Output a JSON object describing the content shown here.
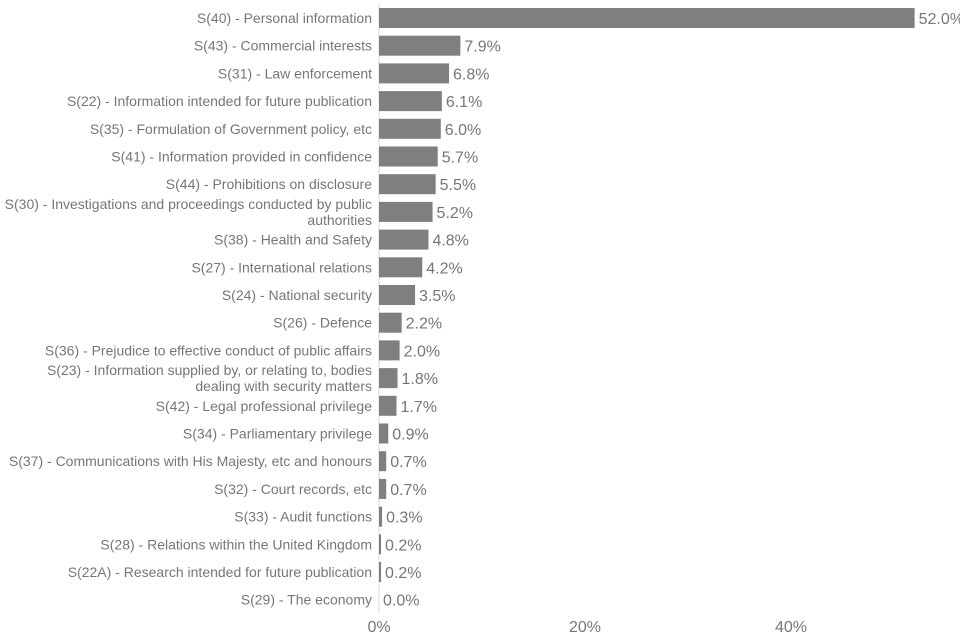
{
  "chart_data": {
    "type": "bar",
    "orientation": "horizontal",
    "categories": [
      "S(40) - Personal information",
      "S(43) - Commercial interests",
      "S(31) - Law enforcement",
      "S(22) - Information intended for future publication",
      "S(35) - Formulation of Government policy, etc",
      "S(41) - Information provided in confidence",
      "S(44) - Prohibitions on disclosure",
      "S(30) - Investigations and proceedings conducted by public authorities",
      "S(38) - Health and Safety",
      "S(27) - International relations",
      "S(24) - National security",
      "S(26) - Defence",
      "S(36) - Prejudice to effective conduct of public affairs",
      "S(23) - Information supplied by, or relating to, bodies dealing with security matters",
      "S(42) - Legal professional privilege",
      "S(34) - Parliamentary privilege",
      "S(37) - Communications with His Majesty, etc and honours",
      "S(32) - Court records, etc",
      "S(33) - Audit functions",
      "S(28) - Relations within the United Kingdom",
      "S(22A) - Research intended for future publication",
      "S(29) - The economy"
    ],
    "category_lines": [
      [
        "S(40) - Personal information"
      ],
      [
        "S(43) - Commercial interests"
      ],
      [
        "S(31) - Law enforcement"
      ],
      [
        "S(22) - Information intended for future publication"
      ],
      [
        "S(35) - Formulation of Government policy, etc"
      ],
      [
        "S(41) - Information provided in confidence"
      ],
      [
        "S(44) - Prohibitions on disclosure"
      ],
      [
        "S(30) - Investigations and proceedings conducted by public",
        "authorities"
      ],
      [
        "S(38) - Health and Safety"
      ],
      [
        "S(27) - International relations"
      ],
      [
        "S(24) - National security"
      ],
      [
        "S(26) - Defence"
      ],
      [
        "S(36) - Prejudice to effective conduct of public affairs"
      ],
      [
        "S(23) - Information supplied by, or relating to, bodies",
        "dealing with security matters"
      ],
      [
        "S(42) - Legal professional privilege"
      ],
      [
        "S(34) - Parliamentary privilege"
      ],
      [
        "S(37) - Communications with His Majesty, etc and honours"
      ],
      [
        "S(32) - Court records, etc"
      ],
      [
        "S(33) - Audit functions"
      ],
      [
        "S(28) - Relations within the United Kingdom"
      ],
      [
        "S(22A) - Research intended for future publication"
      ],
      [
        "S(29) - The economy"
      ]
    ],
    "values": [
      52.0,
      7.9,
      6.8,
      6.1,
      6.0,
      5.7,
      5.5,
      5.2,
      4.8,
      4.2,
      3.5,
      2.2,
      2.0,
      1.8,
      1.7,
      0.9,
      0.7,
      0.7,
      0.3,
      0.2,
      0.2,
      0.0
    ],
    "value_labels": [
      "52.0%",
      "7.9%",
      "6.8%",
      "6.1%",
      "6.0%",
      "5.7%",
      "5.5%",
      "5.2%",
      "4.8%",
      "4.2%",
      "3.5%",
      "2.2%",
      "2.0%",
      "1.8%",
      "1.7%",
      "0.9%",
      "0.7%",
      "0.7%",
      "0.3%",
      "0.2%",
      "0.2%",
      "0.0%"
    ],
    "x_ticks": [
      0,
      20,
      40
    ],
    "x_tick_labels": [
      "0%",
      "20%",
      "40%"
    ],
    "xlim": [
      0,
      56
    ],
    "title": "",
    "xlabel": "",
    "ylabel": "",
    "grid": false,
    "legend": "none",
    "colors": {
      "bar": "#7f7f7f",
      "text": "#767676",
      "axis": "#d9d9d9"
    }
  }
}
